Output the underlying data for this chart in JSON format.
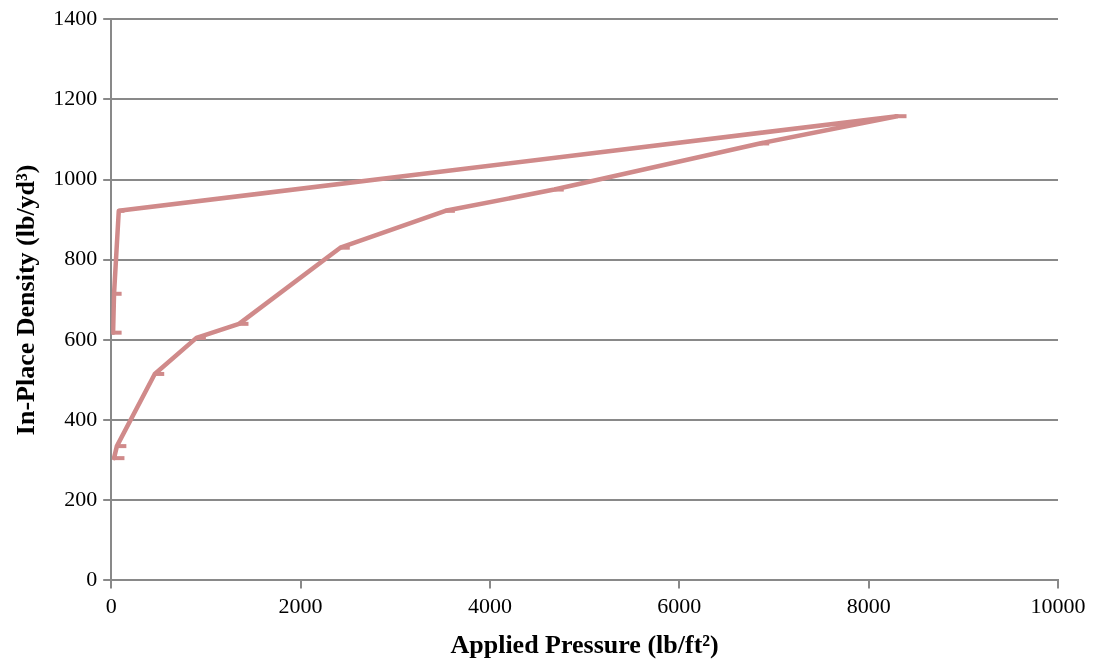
{
  "chart_data": {
    "type": "line",
    "xlabel": "Applied Pressure (lb/ft²)",
    "ylabel": "In-Place Density (lb/yd³)",
    "xlim": [
      0,
      10000
    ],
    "xticks": [
      0,
      2000,
      4000,
      6000,
      8000,
      10000
    ],
    "ylim": [
      0,
      1400
    ],
    "yticks": [
      0,
      200,
      400,
      600,
      800,
      1000,
      1200,
      1400
    ],
    "grid": "y",
    "legend": false,
    "marker": "none",
    "line_style": "solid",
    "series": [
      {
        "color": "#d08a8a",
        "x": [
          30,
          60,
          460,
          900,
          1350,
          2420,
          3530,
          4680,
          6850,
          8300,
          80,
          30,
          20
        ],
        "values": [
          305,
          335,
          515,
          605,
          640,
          830,
          922,
          975,
          1090,
          1158,
          922,
          715,
          618
        ],
        "xerrors": [
          [
            30,
            140
          ],
          [
            60,
            160
          ],
          [
            460,
            560
          ],
          [
            900,
            1000
          ],
          [
            1350,
            1450
          ],
          [
            2420,
            2520
          ],
          [
            3530,
            3630
          ],
          [
            4680,
            4780
          ],
          [
            6850,
            6950
          ],
          [
            8300,
            8400
          ],
          [
            80,
            140
          ],
          [
            30,
            110
          ],
          [
            20,
            110
          ]
        ]
      }
    ]
  }
}
